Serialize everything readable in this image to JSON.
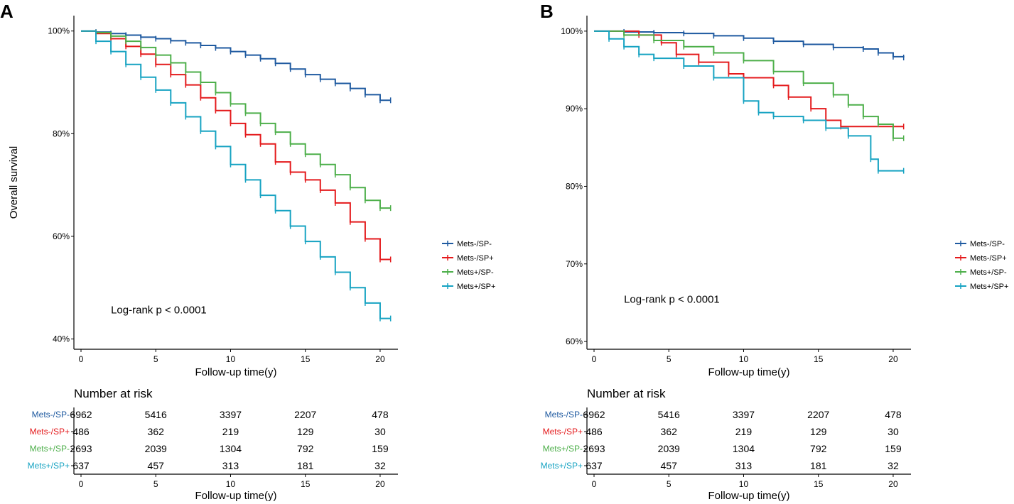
{
  "chart_data": [
    {
      "panel_label": "A",
      "type": "line",
      "subtype": "kaplan-meier",
      "xlabel": "Follow-up time(y)",
      "ylabel": "Overall survival",
      "xlim": [
        0,
        21
      ],
      "ylim": [
        0.38,
        1.03
      ],
      "x_ticks": [
        0,
        5,
        10,
        15,
        20
      ],
      "y_ticks": [
        0.4,
        0.6,
        0.8,
        1.0
      ],
      "y_tick_labels": [
        "40%",
        "60%",
        "80%",
        "100%"
      ],
      "annotation": "Log-rank  p < 0.0001",
      "annotation_pos": [
        2,
        0.45
      ],
      "legend_position": "right",
      "series": [
        {
          "name": "Mets-/SP-",
          "color": "#1f5aa0",
          "x": [
            0,
            1,
            2,
            3,
            4,
            5,
            6,
            7,
            8,
            9,
            10,
            11,
            12,
            13,
            14,
            15,
            16,
            17,
            18,
            19,
            20,
            20.7
          ],
          "y": [
            1.0,
            0.998,
            0.995,
            0.992,
            0.988,
            0.985,
            0.981,
            0.977,
            0.972,
            0.967,
            0.96,
            0.953,
            0.946,
            0.937,
            0.926,
            0.915,
            0.906,
            0.898,
            0.888,
            0.876,
            0.865,
            0.865
          ]
        },
        {
          "name": "Mets-/SP+",
          "color": "#e41a1c",
          "x": [
            0,
            1,
            2,
            3,
            4,
            5,
            6,
            7,
            8,
            9,
            10,
            11,
            12,
            13,
            14,
            15,
            16,
            17,
            18,
            19,
            20,
            20.7
          ],
          "y": [
            1.0,
            0.995,
            0.985,
            0.97,
            0.955,
            0.935,
            0.915,
            0.895,
            0.87,
            0.845,
            0.82,
            0.798,
            0.78,
            0.745,
            0.725,
            0.71,
            0.69,
            0.665,
            0.628,
            0.595,
            0.555,
            0.555
          ]
        },
        {
          "name": "Mets+/SP-",
          "color": "#4daf4a",
          "x": [
            0,
            1,
            2,
            3,
            4,
            5,
            6,
            7,
            8,
            9,
            10,
            11,
            12,
            13,
            14,
            15,
            16,
            17,
            18,
            19,
            20,
            20.7
          ],
          "y": [
            1.0,
            0.997,
            0.99,
            0.98,
            0.968,
            0.953,
            0.938,
            0.92,
            0.9,
            0.88,
            0.858,
            0.84,
            0.82,
            0.803,
            0.78,
            0.76,
            0.74,
            0.72,
            0.695,
            0.67,
            0.655,
            0.655
          ]
        },
        {
          "name": "Mets+/SP+",
          "color": "#17a3c2",
          "x": [
            0,
            1,
            2,
            3,
            4,
            5,
            6,
            7,
            8,
            9,
            10,
            11,
            12,
            13,
            14,
            15,
            16,
            17,
            18,
            19,
            20,
            20.7
          ],
          "y": [
            1.0,
            0.98,
            0.96,
            0.935,
            0.91,
            0.885,
            0.86,
            0.833,
            0.805,
            0.775,
            0.74,
            0.71,
            0.68,
            0.65,
            0.62,
            0.59,
            0.56,
            0.53,
            0.5,
            0.47,
            0.44,
            0.44
          ]
        }
      ],
      "risk_table": {
        "title": "Number at risk",
        "xlabel": "Follow-up time(y)",
        "times": [
          0,
          5,
          10,
          15,
          20
        ],
        "rows": [
          {
            "name": "Mets-/SP-",
            "counts": [
              "6962",
              "5416",
              "3397",
              "2207",
              "478"
            ]
          },
          {
            "name": "Mets-/SP+",
            "counts": [
              "486",
              "362",
              "219",
              "129",
              "30"
            ]
          },
          {
            "name": "Mets+/SP-",
            "counts": [
              "2693",
              "2039",
              "1304",
              "792",
              "159"
            ]
          },
          {
            "name": "Mets+/SP+",
            "counts": [
              "637",
              "457",
              "313",
              "181",
              "32"
            ]
          }
        ]
      }
    },
    {
      "panel_label": "B",
      "type": "line",
      "subtype": "kaplan-meier",
      "xlabel": "Follow-up time(y)",
      "ylabel": "",
      "xlim": [
        0,
        21
      ],
      "ylim": [
        0.59,
        1.02
      ],
      "x_ticks": [
        0,
        5,
        10,
        15,
        20
      ],
      "y_ticks": [
        0.6,
        0.7,
        0.8,
        0.9,
        1.0
      ],
      "y_tick_labels": [
        "60%",
        "70%",
        "80%",
        "90%",
        "100%"
      ],
      "annotation": "Log-rank  p < 0.0001",
      "annotation_pos": [
        2,
        0.65
      ],
      "legend_position": "right",
      "series": [
        {
          "name": "Mets-/SP-",
          "color": "#1f5aa0",
          "x": [
            0,
            2,
            4,
            6,
            8,
            10,
            12,
            14,
            16,
            18,
            19,
            20,
            20.7
          ],
          "y": [
            1.0,
            0.999,
            0.998,
            0.997,
            0.994,
            0.991,
            0.987,
            0.983,
            0.979,
            0.977,
            0.972,
            0.967,
            0.966
          ]
        },
        {
          "name": "Mets-/SP+",
          "color": "#e41a1c",
          "x": [
            0,
            3,
            4.5,
            5.5,
            7,
            9,
            10,
            12,
            13,
            14.5,
            15.5,
            16.5,
            20.7
          ],
          "y": [
            1.0,
            0.995,
            0.985,
            0.97,
            0.96,
            0.945,
            0.94,
            0.93,
            0.915,
            0.9,
            0.885,
            0.877,
            0.877
          ]
        },
        {
          "name": "Mets+/SP-",
          "color": "#4daf4a",
          "x": [
            0,
            2,
            4,
            6,
            8,
            10,
            12,
            14,
            16,
            17,
            18,
            19,
            20,
            20.7
          ],
          "y": [
            1.0,
            0.995,
            0.988,
            0.98,
            0.972,
            0.962,
            0.948,
            0.933,
            0.918,
            0.905,
            0.89,
            0.88,
            0.862,
            0.862
          ]
        },
        {
          "name": "Mets+/SP+",
          "color": "#17a3c2",
          "x": [
            0,
            1,
            2,
            3,
            4,
            6,
            8,
            10,
            11,
            12,
            14,
            15.5,
            17,
            18.5,
            19,
            20.7
          ],
          "y": [
            1.0,
            0.99,
            0.98,
            0.97,
            0.965,
            0.955,
            0.94,
            0.91,
            0.895,
            0.89,
            0.885,
            0.875,
            0.865,
            0.835,
            0.82,
            0.82
          ]
        }
      ],
      "risk_table": {
        "title": "Number at risk",
        "xlabel": "Follow-up time(y)",
        "times": [
          0,
          5,
          10,
          15,
          20
        ],
        "rows": [
          {
            "name": "Mets-/SP-",
            "counts": [
              "6962",
              "5416",
              "3397",
              "2207",
              "478"
            ]
          },
          {
            "name": "Mets-/SP+",
            "counts": [
              "486",
              "362",
              "219",
              "129",
              "30"
            ]
          },
          {
            "name": "Mets+/SP-",
            "counts": [
              "2693",
              "2039",
              "1304",
              "792",
              "159"
            ]
          },
          {
            "name": "Mets+/SP+",
            "counts": [
              "637",
              "457",
              "313",
              "181",
              "32"
            ]
          }
        ]
      }
    }
  ]
}
